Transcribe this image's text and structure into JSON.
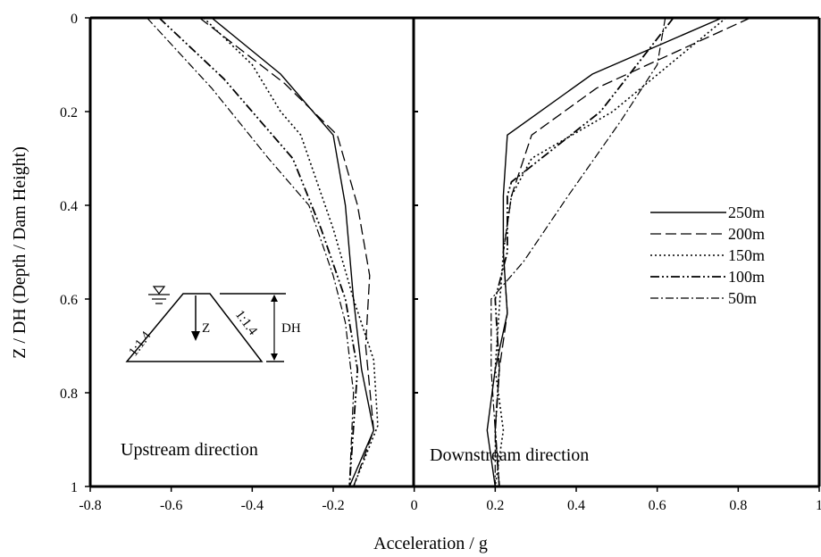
{
  "chart_data": {
    "type": "line",
    "xlabel": "Acceleration / g",
    "ylabel": "Z / DH (Depth / Dam Height)",
    "xlim": [
      -0.8,
      1.0
    ],
    "ylim": [
      0,
      1
    ],
    "y_reversed": true,
    "x_ticks": [
      "-0.8",
      "-0.6",
      "-0.4",
      "-0.2",
      "0",
      "0.2",
      "0.4",
      "0.6",
      "0.8",
      "1"
    ],
    "y_ticks": [
      "0",
      "0.2",
      "0.4",
      "0.6",
      "0.8",
      "1"
    ],
    "grid": false,
    "legend_position": "right",
    "panels": [
      {
        "label": "Upstream direction",
        "position": "bottom-left"
      },
      {
        "label": "Downstream direction",
        "position": "bottom-right"
      }
    ],
    "inset": {
      "left_slope": "1:1.4",
      "right_slope": "1:1.4",
      "depth_label": "Z",
      "height_label": "DH"
    },
    "series": [
      {
        "name": "250m",
        "dash": "solid",
        "upstream": {
          "x": [
            -0.5,
            -0.33,
            -0.2,
            -0.17,
            -0.15,
            -0.13,
            -0.1,
            -0.16
          ],
          "y": [
            0,
            0.12,
            0.25,
            0.4,
            0.6,
            0.75,
            0.88,
            1
          ]
        },
        "downstream": {
          "x": [
            0.76,
            0.44,
            0.23,
            0.22,
            0.22,
            0.23,
            0.2,
            0.18,
            0.2
          ],
          "y": [
            0,
            0.12,
            0.25,
            0.38,
            0.5,
            0.63,
            0.75,
            0.88,
            1
          ]
        }
      },
      {
        "name": "200m",
        "dash": "long-dash",
        "upstream": {
          "x": [
            -0.53,
            -0.32,
            -0.19,
            -0.14,
            -0.11,
            -0.12,
            -0.1,
            -0.15
          ],
          "y": [
            0,
            0.14,
            0.25,
            0.4,
            0.55,
            0.7,
            0.88,
            1
          ]
        },
        "downstream": {
          "x": [
            0.83,
            0.45,
            0.29,
            0.24,
            0.22,
            0.23,
            0.21,
            0.2,
            0.21
          ],
          "y": [
            0,
            0.15,
            0.25,
            0.38,
            0.5,
            0.63,
            0.75,
            0.88,
            1
          ]
        }
      },
      {
        "name": "150m",
        "dash": "dot",
        "upstream": {
          "x": [
            -0.52,
            -0.4,
            -0.33,
            -0.28,
            -0.2,
            -0.15,
            -0.1,
            -0.09,
            -0.15
          ],
          "y": [
            0,
            0.1,
            0.2,
            0.25,
            0.45,
            0.6,
            0.73,
            0.87,
            1
          ]
        },
        "downstream": {
          "x": [
            0.77,
            0.49,
            0.29,
            0.24,
            0.22,
            0.21,
            0.2,
            0.22,
            0.2
          ],
          "y": [
            0,
            0.2,
            0.3,
            0.38,
            0.5,
            0.62,
            0.75,
            0.88,
            1
          ]
        }
      },
      {
        "name": "100m",
        "dash": "dash-dot-dot",
        "upstream": {
          "x": [
            -0.63,
            -0.47,
            -0.37,
            -0.3,
            -0.23,
            -0.17,
            -0.14,
            -0.16
          ],
          "y": [
            0,
            0.13,
            0.23,
            0.3,
            0.45,
            0.6,
            0.75,
            1
          ]
        },
        "downstream": {
          "x": [
            0.64,
            0.46,
            0.24,
            0.23,
            0.23,
            0.2,
            0.21,
            0.2,
            0.21
          ],
          "y": [
            0,
            0.2,
            0.35,
            0.38,
            0.5,
            0.6,
            0.75,
            0.88,
            1
          ]
        }
      },
      {
        "name": "50m",
        "dash": "dash-dot",
        "upstream": {
          "x": [
            -0.66,
            -0.5,
            -0.36,
            -0.26,
            -0.2,
            -0.17,
            -0.15,
            -0.16
          ],
          "y": [
            0,
            0.15,
            0.3,
            0.4,
            0.55,
            0.65,
            0.8,
            1
          ]
        },
        "downstream": {
          "x": [
            0.62,
            0.6,
            0.51,
            0.38,
            0.27,
            0.19,
            0.19,
            0.2,
            0.2
          ],
          "y": [
            0,
            0.1,
            0.22,
            0.38,
            0.52,
            0.6,
            0.75,
            0.88,
            1
          ]
        }
      }
    ]
  }
}
